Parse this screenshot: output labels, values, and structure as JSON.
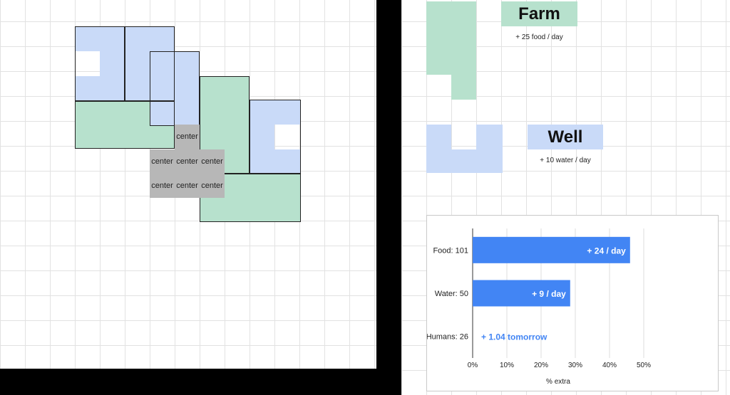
{
  "grid": {
    "center_label": "center"
  },
  "farm_card": {
    "title": "Farm",
    "subtitle": "+ 25 food / day",
    "color": "#b7e1cd"
  },
  "well_card": {
    "title": "Well",
    "subtitle": "+ 10 water / day",
    "color": "#c9daf8"
  },
  "colors": {
    "blue_tile": "#c9daf8",
    "green_tile": "#b7e1cd",
    "center_tile": "#b7b7b7",
    "bar": "#4285f4",
    "black_band": "#000000"
  },
  "chart_data": {
    "type": "bar",
    "orientation": "horizontal",
    "categories": [
      "Food: 101",
      "Water: 50",
      "Humans: 26"
    ],
    "values": [
      46,
      28.5,
      0
    ],
    "data_labels": [
      "+ 24 / day",
      "+ 9 / day",
      "+ 1.04 tomorrow"
    ],
    "xlabel": "% extra",
    "x_ticks": [
      "0%",
      "10%",
      "20%",
      "30%",
      "40%",
      "50%"
    ],
    "xlim": [
      0,
      50
    ],
    "grid": true,
    "legend": "none"
  }
}
